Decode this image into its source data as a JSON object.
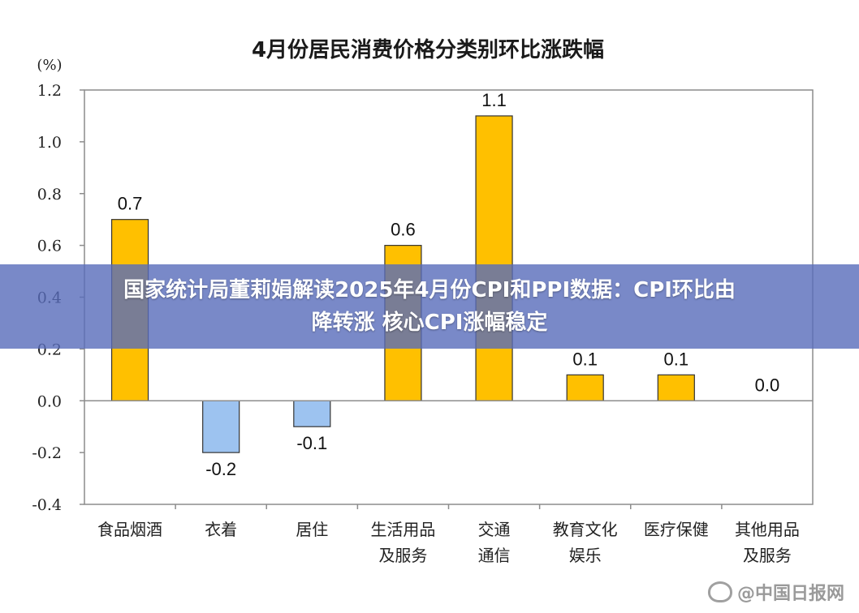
{
  "chart_data": {
    "type": "bar",
    "title": "4月份居民消费价格分类别环比涨跌幅",
    "unit_label": "(%)",
    "ylim": [
      -0.4,
      1.2
    ],
    "yticks": [
      "1.2",
      "1.0",
      "0.8",
      "0.6",
      "0.4",
      "0.2",
      "0.0",
      "-0.2",
      "-0.4"
    ],
    "ytick_values": [
      1.2,
      1.0,
      0.8,
      0.6,
      0.4,
      0.2,
      0.0,
      -0.2,
      -0.4
    ],
    "categories": [
      [
        "食品烟酒"
      ],
      [
        "衣着"
      ],
      [
        "居住"
      ],
      [
        "生活用品",
        "及服务"
      ],
      [
        "交通",
        "通信"
      ],
      [
        "教育文化",
        "娱乐"
      ],
      [
        "医疗保健"
      ],
      [
        "其他用品",
        "及服务"
      ]
    ],
    "values": [
      0.7,
      -0.2,
      -0.1,
      0.6,
      1.1,
      0.1,
      0.1,
      0.0
    ],
    "value_labels": [
      "0.7",
      "-0.2",
      "-0.1",
      "0.6",
      "1.1",
      "0.1",
      "0.1",
      "0.0"
    ],
    "colors": {
      "positive": "#FFC000",
      "negative": "#9DC3F0",
      "positive_stroke": "#333333",
      "negative_stroke": "#333333"
    },
    "grid": false,
    "legend": "none"
  },
  "banner": {
    "line1": "国家统计局董莉娟解读2025年4月份CPI和PPI数据：CPI环比由",
    "line2": "降转涨 核心CPI涨幅稳定"
  },
  "watermark": {
    "text": "@中国日报网",
    "icon": "weibo-icon"
  }
}
